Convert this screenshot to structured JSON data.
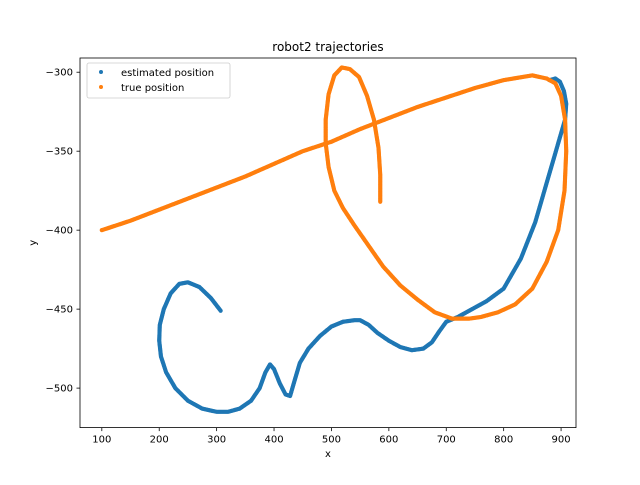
{
  "chart_data": {
    "type": "scatter",
    "title": "robot2 trajectories",
    "xlabel": "x",
    "ylabel": "y",
    "xlim": [
      62,
      926
    ],
    "ylim": [
      -525,
      -291
    ],
    "xticks": [
      100,
      200,
      300,
      400,
      500,
      600,
      700,
      800,
      900
    ],
    "yticks": [
      -300,
      -350,
      -400,
      -450,
      -500
    ],
    "grid": false,
    "legend_position": "upper left",
    "series": [
      {
        "name": "estimated position",
        "color": "#1f77b4",
        "points": [
          [
            307,
            -451
          ],
          [
            290,
            -443
          ],
          [
            270,
            -436
          ],
          [
            250,
            -433
          ],
          [
            235,
            -434
          ],
          [
            220,
            -440
          ],
          [
            208,
            -450
          ],
          [
            201,
            -460
          ],
          [
            200,
            -470
          ],
          [
            203,
            -480
          ],
          [
            212,
            -490
          ],
          [
            228,
            -500
          ],
          [
            250,
            -508
          ],
          [
            275,
            -513
          ],
          [
            300,
            -515
          ],
          [
            320,
            -515
          ],
          [
            340,
            -513
          ],
          [
            360,
            -508
          ],
          [
            375,
            -500
          ],
          [
            385,
            -490
          ],
          [
            393,
            -485
          ],
          [
            400,
            -488
          ],
          [
            410,
            -497
          ],
          [
            420,
            -504
          ],
          [
            428,
            -505
          ],
          [
            436,
            -495
          ],
          [
            445,
            -484
          ],
          [
            460,
            -475
          ],
          [
            480,
            -467
          ],
          [
            500,
            -461
          ],
          [
            520,
            -458
          ],
          [
            540,
            -457
          ],
          [
            550,
            -457
          ],
          [
            565,
            -460
          ],
          [
            580,
            -465
          ],
          [
            600,
            -470
          ],
          [
            620,
            -474
          ],
          [
            640,
            -476
          ],
          [
            660,
            -475
          ],
          [
            675,
            -471
          ],
          [
            688,
            -464
          ],
          [
            700,
            -458
          ],
          [
            720,
            -455
          ],
          [
            745,
            -450
          ],
          [
            770,
            -445
          ],
          [
            800,
            -437
          ],
          [
            830,
            -418
          ],
          [
            855,
            -395
          ],
          [
            875,
            -370
          ],
          [
            895,
            -345
          ],
          [
            907,
            -330
          ],
          [
            909,
            -320
          ],
          [
            905,
            -312
          ],
          [
            898,
            -306
          ],
          [
            890,
            -304
          ],
          [
            880,
            -305
          ]
        ]
      },
      {
        "name": "true position",
        "color": "#ff7f0e",
        "points": [
          [
            100,
            -400
          ],
          [
            150,
            -394
          ],
          [
            200,
            -387
          ],
          [
            250,
            -380
          ],
          [
            300,
            -373
          ],
          [
            350,
            -366
          ],
          [
            400,
            -358
          ],
          [
            450,
            -350
          ],
          [
            500,
            -344
          ],
          [
            550,
            -336
          ],
          [
            600,
            -329
          ],
          [
            650,
            -322
          ],
          [
            700,
            -316
          ],
          [
            750,
            -310
          ],
          [
            800,
            -305
          ],
          [
            850,
            -302
          ],
          [
            875,
            -304
          ],
          [
            890,
            -307
          ],
          [
            900,
            -315
          ],
          [
            907,
            -330
          ],
          [
            909,
            -350
          ],
          [
            906,
            -375
          ],
          [
            895,
            -400
          ],
          [
            875,
            -420
          ],
          [
            850,
            -437
          ],
          [
            820,
            -447
          ],
          [
            790,
            -452
          ],
          [
            760,
            -455
          ],
          [
            740,
            -456
          ],
          [
            710,
            -456
          ],
          [
            680,
            -452
          ],
          [
            650,
            -444
          ],
          [
            620,
            -435
          ],
          [
            590,
            -423
          ],
          [
            565,
            -410
          ],
          [
            540,
            -397
          ],
          [
            520,
            -386
          ],
          [
            505,
            -375
          ],
          [
            495,
            -360
          ],
          [
            490,
            -345
          ],
          [
            490,
            -330
          ],
          [
            495,
            -314
          ],
          [
            505,
            -302
          ],
          [
            518,
            -297
          ],
          [
            532,
            -298
          ],
          [
            548,
            -303
          ],
          [
            562,
            -315
          ],
          [
            574,
            -330
          ],
          [
            582,
            -348
          ],
          [
            585,
            -365
          ],
          [
            585,
            -382
          ]
        ]
      }
    ]
  }
}
